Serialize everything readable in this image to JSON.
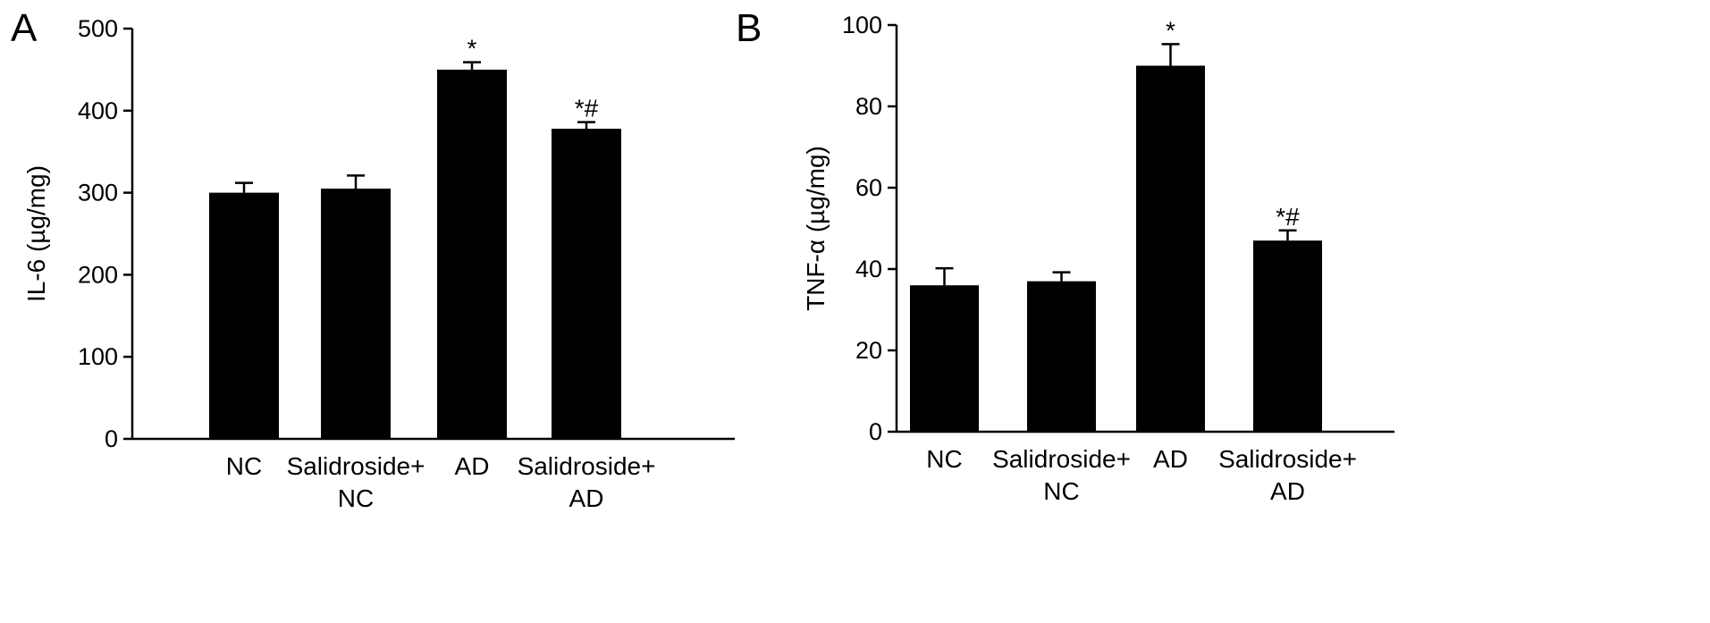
{
  "colors": {
    "bar": "#000000",
    "axis": "#000000",
    "background": "#ffffff"
  },
  "chart_data": [
    {
      "type": "bar",
      "panel": "A",
      "ylabel": "IL-6 (µg/mg)",
      "ylim": [
        0,
        500
      ],
      "yticks": [
        0,
        100,
        200,
        300,
        400,
        500
      ],
      "categories": [
        [
          "NC"
        ],
        [
          "Salidroside+",
          "NC"
        ],
        [
          "AD"
        ],
        [
          "Salidroside+",
          "AD"
        ]
      ],
      "values": [
        300,
        305,
        450,
        378
      ],
      "errors": [
        12,
        16,
        9,
        8
      ],
      "annotations": [
        "",
        "",
        "*",
        "*#"
      ],
      "grid": false,
      "legend": "none"
    },
    {
      "type": "bar",
      "panel": "B",
      "ylabel": "TNF-α (µg/mg)",
      "ylim": [
        0,
        100
      ],
      "yticks": [
        0,
        20,
        40,
        60,
        80,
        100
      ],
      "categories": [
        [
          "NC"
        ],
        [
          "Salidroside+",
          "NC"
        ],
        [
          "AD"
        ],
        [
          "Salidroside+",
          "AD"
        ]
      ],
      "values": [
        36,
        37,
        90,
        47
      ],
      "errors": [
        4.2,
        2.2,
        5.3,
        2.5
      ],
      "annotations": [
        "",
        "",
        "*",
        "*#"
      ],
      "grid": false,
      "legend": "none"
    }
  ]
}
